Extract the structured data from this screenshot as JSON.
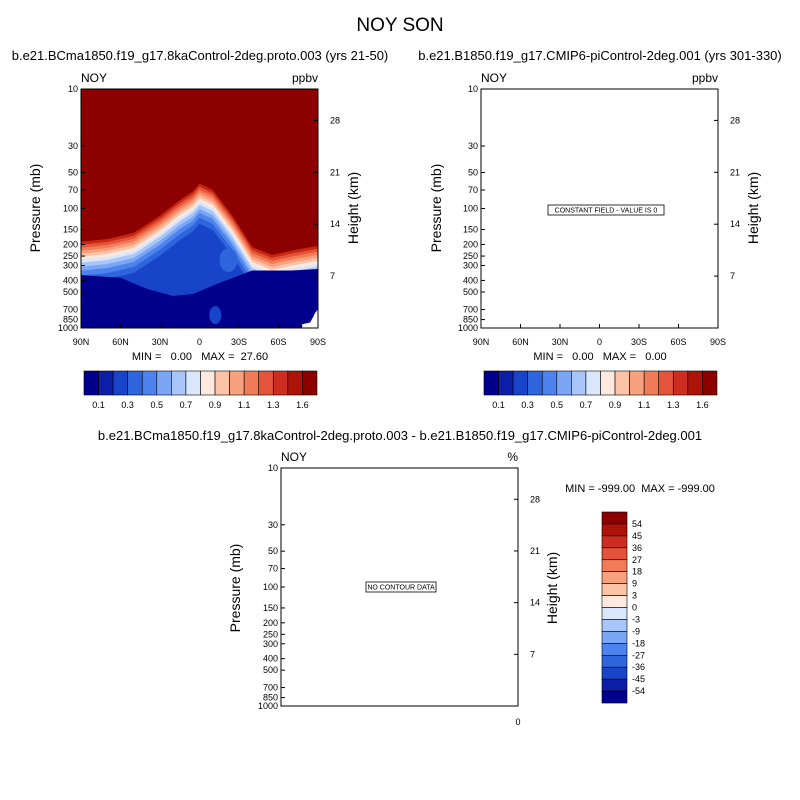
{
  "page": {
    "title": "NOY SON",
    "background": "#ffffff"
  },
  "colors": {
    "diverging_scale": [
      "#00008c",
      "#0c1ea6",
      "#1744c8",
      "#2e64dc",
      "#4d83ee",
      "#7aa6f5",
      "#a8c6fa",
      "#d9e7fd",
      "#ffe9de",
      "#fdc3a7",
      "#f9a07e",
      "#f27b58",
      "#e4543a",
      "#cc2d20",
      "#ad1309",
      "#8c0000"
    ],
    "plot_background": "#8c0000"
  },
  "panels": [
    {
      "title": "b.e21.BCma1850.f19_g17.8kaControl-2deg.proto.003 (yrs 21-50)",
      "var_label": "NOY",
      "units_label": "ppbv",
      "min_max": "MIN =   0.00   MAX =  27.60",
      "message": ""
    },
    {
      "title": "b.e21.B1850.f19_g17.CMIP6-piControl-2deg.001 (yrs 301-330)",
      "var_label": "NOY",
      "units_label": "ppbv",
      "min_max": "MIN =   0.00   MAX =   0.00",
      "message": "CONSTANT FIELD - VALUE IS 0"
    },
    {
      "title": "b.e21.BCma1850.f19_g17.8kaControl-2deg.proto.003 - b.e21.B1850.f19_g17.CMIP6-piControl-2deg.001",
      "var_label": "NOY",
      "units_label": "%",
      "min_max": "MIN = -999.00  MAX = -999.00",
      "message": "NO CONTOUR DATA",
      "x_label_zero": "0"
    }
  ],
  "axes": {
    "ylabel_left": "Pressure (mb)",
    "ylabel_right": "Height (km)",
    "pressure_ticks": [
      "10",
      "30",
      "50",
      "70",
      "100",
      "150",
      "200",
      "250",
      "300",
      "400",
      "500",
      "700",
      "850",
      "1000"
    ],
    "pressure_values": [
      10,
      30,
      50,
      70,
      100,
      150,
      200,
      250,
      300,
      400,
      500,
      700,
      850,
      1000
    ],
    "height_ticks": [
      "28",
      "21",
      "14",
      "7"
    ],
    "height_values": [
      28,
      21,
      14,
      7
    ],
    "lat_ticks": [
      "90N",
      "60N",
      "30N",
      "0",
      "30S",
      "60S",
      "90S"
    ],
    "lat_values": [
      90,
      60,
      30,
      0,
      -30,
      -60,
      -90
    ]
  },
  "colorbar_abs": {
    "labels": [
      "0.1",
      "0.3",
      "0.5",
      "0.7",
      "0.9",
      "1.1",
      "1.3",
      "1.6"
    ]
  },
  "colorbar_diff": {
    "labels": [
      "54",
      "45",
      "36",
      "27",
      "18",
      "9",
      "3",
      "0",
      "-3",
      "-9",
      "-18",
      "-27",
      "-36",
      "-45",
      "-54"
    ]
  },
  "chart_data": [
    {
      "type": "heatmap",
      "title": "b.e21.BCma1850.f19_g17.8kaControl-2deg.proto.003 (yrs 21-50)",
      "xlabel": "",
      "ylabel": "Pressure (mb)",
      "y2label": "Height (km)",
      "x_range": [
        90,
        -90
      ],
      "y_range": [
        1000,
        10
      ],
      "y_scale": "log",
      "min": 0.0,
      "max": 27.6,
      "units": "ppbv",
      "contour_levels": [
        0.1,
        0.2,
        0.3,
        0.4,
        0.5,
        0.6,
        0.7,
        0.8,
        0.9,
        1.0,
        1.1,
        1.2,
        1.3,
        1.4,
        1.6
      ],
      "high_value_boundary": {
        "lat": [
          90,
          70,
          50,
          30,
          15,
          5,
          0,
          -10,
          -25,
          -40,
          -55,
          -70,
          -90
        ],
        "pressure": [
          190,
          180,
          160,
          115,
          85,
          72,
          62,
          70,
          115,
          210,
          245,
          225,
          205
        ]
      }
    },
    {
      "type": "heatmap",
      "title": "b.e21.B1850.f19_g17.CMIP6-piControl-2deg.001 (yrs 301-330)",
      "ylabel": "Pressure (mb)",
      "y2label": "Height (km)",
      "x_range": [
        90,
        -90
      ],
      "y_range": [
        1000,
        10
      ],
      "y_scale": "log",
      "min": 0.0,
      "max": 0.0,
      "units": "ppbv"
    },
    {
      "type": "heatmap",
      "title": "b.e21.BCma1850.f19_g17.8kaControl-2deg.proto.003 - b.e21.B1850.f19_g17.CMIP6-piControl-2deg.001",
      "ylabel": "Pressure (mb)",
      "y2label": "Height (km)",
      "y_range": [
        1000,
        10
      ],
      "y_scale": "log",
      "min": -999.0,
      "max": -999.0,
      "units": "%"
    }
  ]
}
